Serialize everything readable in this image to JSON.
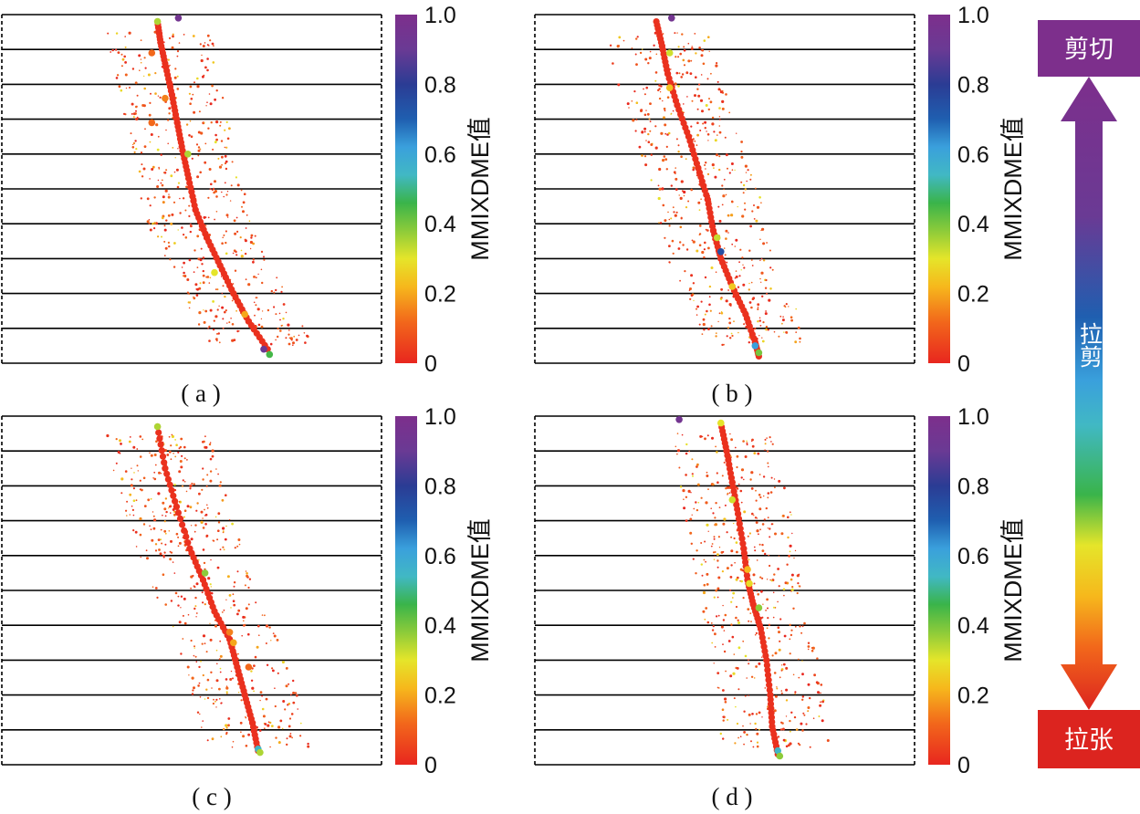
{
  "figure": {
    "panels": [
      {
        "id": "a",
        "caption": "( a )"
      },
      {
        "id": "b",
        "caption": "( b )"
      },
      {
        "id": "c",
        "caption": "( c )"
      },
      {
        "id": "d",
        "caption": "( d )"
      }
    ],
    "legend": {
      "top_label": "剪切",
      "bottom_label": "拉张",
      "middle_label": "拉剪"
    }
  },
  "chart_data": [
    {
      "type": "scatter",
      "panel": "a",
      "caption": "( a )",
      "colorbar": {
        "label": "MMIXDME值",
        "range": [
          0,
          1
        ],
        "ticks": [
          "0",
          "0.2",
          "0.4",
          "0.6",
          "0.8",
          "1.0"
        ]
      },
      "layers": 10,
      "crack_path": [
        [
          0.41,
          0.02
        ],
        [
          0.418,
          0.08
        ],
        [
          0.432,
          0.15
        ],
        [
          0.448,
          0.23
        ],
        [
          0.462,
          0.31
        ],
        [
          0.476,
          0.39
        ],
        [
          0.492,
          0.47
        ],
        [
          0.51,
          0.56
        ],
        [
          0.54,
          0.64
        ],
        [
          0.575,
          0.72
        ],
        [
          0.61,
          0.8
        ],
        [
          0.65,
          0.88
        ],
        [
          0.7,
          0.96
        ]
      ],
      "points": [
        {
          "x": 0.41,
          "y": 0.02,
          "value": 0.35
        },
        {
          "x": 0.465,
          "y": 0.01,
          "value": 0.95
        },
        {
          "x": 0.395,
          "y": 0.11,
          "value": 0.12
        },
        {
          "x": 0.43,
          "y": 0.24,
          "value": 0.15
        },
        {
          "x": 0.395,
          "y": 0.31,
          "value": 0.12
        },
        {
          "x": 0.49,
          "y": 0.4,
          "value": 0.35
        },
        {
          "x": 0.56,
          "y": 0.74,
          "value": 0.3
        },
        {
          "x": 0.64,
          "y": 0.86,
          "value": 0.2
        },
        {
          "x": 0.69,
          "y": 0.96,
          "value": 0.9
        },
        {
          "x": 0.705,
          "y": 0.975,
          "value": 0.45
        }
      ]
    },
    {
      "type": "scatter",
      "panel": "b",
      "caption": "( b )",
      "colorbar": {
        "label": "MMIXDME值",
        "range": [
          0,
          1
        ],
        "ticks": [
          "0",
          "0.2",
          "0.4",
          "0.6",
          "0.8",
          "1.0"
        ]
      },
      "layers": 10,
      "crack_path": [
        [
          0.32,
          0.02
        ],
        [
          0.335,
          0.09
        ],
        [
          0.35,
          0.17
        ],
        [
          0.375,
          0.26
        ],
        [
          0.405,
          0.35
        ],
        [
          0.43,
          0.44
        ],
        [
          0.455,
          0.53
        ],
        [
          0.47,
          0.62
        ],
        [
          0.49,
          0.7
        ],
        [
          0.52,
          0.78
        ],
        [
          0.555,
          0.86
        ],
        [
          0.58,
          0.94
        ],
        [
          0.59,
          0.98
        ]
      ],
      "points": [
        {
          "x": 0.355,
          "y": 0.11,
          "value": 0.32
        },
        {
          "x": 0.355,
          "y": 0.21,
          "value": 0.24
        },
        {
          "x": 0.48,
          "y": 0.64,
          "value": 0.33
        },
        {
          "x": 0.49,
          "y": 0.68,
          "value": 0.75
        },
        {
          "x": 0.52,
          "y": 0.78,
          "value": 0.25
        },
        {
          "x": 0.58,
          "y": 0.95,
          "value": 0.62
        },
        {
          "x": 0.59,
          "y": 0.97,
          "value": 0.4
        },
        {
          "x": 0.36,
          "y": 0.01,
          "value": 0.95
        }
      ]
    },
    {
      "type": "scatter",
      "panel": "c",
      "caption": "( c )",
      "colorbar": {
        "label": "MMIXDME值",
        "range": [
          0,
          1
        ],
        "ticks": [
          "0",
          "0.2",
          "0.4",
          "0.6",
          "0.8",
          "1.0"
        ]
      },
      "layers": 10,
      "crack_path": [
        [
          0.41,
          0.03
        ],
        [
          0.43,
          0.15
        ],
        [
          0.46,
          0.26
        ],
        [
          0.495,
          0.38
        ],
        [
          0.53,
          0.47
        ],
        [
          0.56,
          0.56
        ],
        [
          0.6,
          0.64
        ],
        [
          0.62,
          0.72
        ],
        [
          0.64,
          0.8
        ],
        [
          0.66,
          0.88
        ],
        [
          0.675,
          0.96
        ]
      ],
      "points": [
        {
          "x": 0.41,
          "y": 0.03,
          "value": 0.35
        },
        {
          "x": 0.535,
          "y": 0.45,
          "value": 0.38
        },
        {
          "x": 0.6,
          "y": 0.62,
          "value": 0.15
        },
        {
          "x": 0.61,
          "y": 0.65,
          "value": 0.2
        },
        {
          "x": 0.65,
          "y": 0.72,
          "value": 0.12
        },
        {
          "x": 0.675,
          "y": 0.955,
          "value": 0.55
        },
        {
          "x": 0.68,
          "y": 0.965,
          "value": 0.35
        }
      ]
    },
    {
      "type": "scatter",
      "panel": "d",
      "caption": "( d )",
      "colorbar": {
        "label": "MMIXDME值",
        "range": [
          0,
          1
        ],
        "ticks": [
          "0",
          "0.2",
          "0.4",
          "0.6",
          "0.8",
          "1.0"
        ]
      },
      "layers": 10,
      "crack_path": [
        [
          0.49,
          0.02
        ],
        [
          0.505,
          0.1
        ],
        [
          0.52,
          0.19
        ],
        [
          0.535,
          0.28
        ],
        [
          0.55,
          0.38
        ],
        [
          0.56,
          0.47
        ],
        [
          0.575,
          0.54
        ],
        [
          0.595,
          0.61
        ],
        [
          0.61,
          0.7
        ],
        [
          0.62,
          0.8
        ],
        [
          0.625,
          0.89
        ],
        [
          0.64,
          0.97
        ]
      ],
      "points": [
        {
          "x": 0.49,
          "y": 0.02,
          "value": 0.3
        },
        {
          "x": 0.52,
          "y": 0.24,
          "value": 0.32
        },
        {
          "x": 0.56,
          "y": 0.44,
          "value": 0.22
        },
        {
          "x": 0.565,
          "y": 0.48,
          "value": 0.28
        },
        {
          "x": 0.59,
          "y": 0.55,
          "value": 0.38
        },
        {
          "x": 0.64,
          "y": 0.96,
          "value": 0.55
        },
        {
          "x": 0.645,
          "y": 0.975,
          "value": 0.38
        },
        {
          "x": 0.38,
          "y": 0.01,
          "value": 0.95
        }
      ]
    }
  ]
}
